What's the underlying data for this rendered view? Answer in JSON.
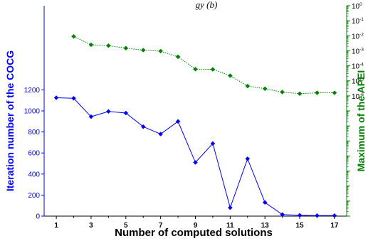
{
  "chart_data": {
    "type": "line",
    "title": "gy (b)",
    "xlabel": "Number of computed solutions",
    "ylabel_left": "Iteration number of the COCG",
    "ylabel_right": "Maximum of the APEI",
    "x_ticks": [
      1,
      3,
      5,
      7,
      9,
      11,
      13,
      15,
      17
    ],
    "x_ticks_minor": [
      2,
      4,
      6,
      8,
      10,
      12,
      14,
      16
    ],
    "xlim": [
      0.3,
      17.7
    ],
    "left_axis": {
      "scale": "linear",
      "ylim": [
        0,
        2000
      ],
      "ticks": [
        0,
        200,
        400,
        600,
        800,
        1000,
        1200
      ],
      "color": "#0000ff"
    },
    "right_axis": {
      "scale": "log",
      "ylim_exp": [
        -14,
        0
      ],
      "tick_labels": [
        {
          "exp": 0,
          "label": "10",
          "sup": "0"
        },
        {
          "exp": -1,
          "label": "10",
          "sup": "-1"
        },
        {
          "exp": -2,
          "label": "10",
          "sup": "-2"
        },
        {
          "exp": -3,
          "label": "10",
          "sup": "-3"
        },
        {
          "exp": -4,
          "label": "10",
          "sup": "-4"
        },
        {
          "exp": -5,
          "label": "10",
          "sup": "-5"
        },
        {
          "exp": -6,
          "label": "10",
          "sup": "-6"
        }
      ],
      "color": "#008000"
    },
    "series": [
      {
        "axis": "left",
        "color": "#0000ff",
        "style": "solid",
        "marker": "diamond",
        "x": [
          1,
          2,
          3,
          4,
          5,
          6,
          7,
          8,
          9,
          10,
          11,
          12,
          13,
          14,
          15,
          16,
          17
        ],
        "y": [
          1125,
          1120,
          945,
          995,
          980,
          850,
          780,
          900,
          510,
          690,
          80,
          545,
          130,
          15,
          8,
          5,
          5
        ]
      },
      {
        "axis": "right",
        "color": "#008000",
        "style": "dotted",
        "marker": "diamond",
        "x": [
          2,
          3,
          4,
          5,
          6,
          7,
          8,
          9,
          10,
          11,
          12,
          13,
          14,
          15,
          16,
          17
        ],
        "y": [
          0.009,
          0.0025,
          0.0022,
          0.0015,
          0.0011,
          0.00095,
          0.0004,
          6e-05,
          5.8e-05,
          2.2e-05,
          4.5e-06,
          3e-06,
          1.8e-06,
          1.4e-06,
          1.6e-06,
          1.6e-06
        ]
      }
    ]
  }
}
